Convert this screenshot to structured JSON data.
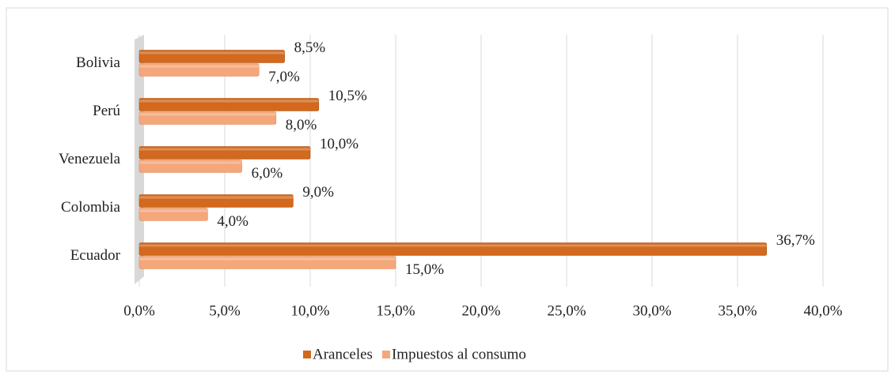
{
  "chart_data": {
    "type": "hbar",
    "categories": [
      "Bolivia",
      "Perú",
      "Venezuela",
      "Colombia",
      "Ecuador"
    ],
    "series": [
      {
        "name": "Aranceles",
        "color": "#d2691e",
        "values": [
          8.5,
          10.5,
          10.0,
          9.0,
          36.7
        ],
        "value_labels": [
          "8,5%",
          "10,5%",
          "10,0%",
          "9,0%",
          "36,7%"
        ]
      },
      {
        "name": "Impuestos al consumo",
        "color": "#f4a77a",
        "values": [
          7.0,
          8.0,
          6.0,
          4.0,
          15.0
        ],
        "value_labels": [
          "7,0%",
          "8,0%",
          "6,0%",
          "4,0%",
          "15,0%"
        ]
      }
    ],
    "xlim": [
      0,
      40
    ],
    "xticks": [
      {
        "value": 0,
        "label": "0,0%"
      },
      {
        "value": 5,
        "label": "5,0%"
      },
      {
        "value": 10,
        "label": "10,0%"
      },
      {
        "value": 15,
        "label": "15,0%"
      },
      {
        "value": 20,
        "label": "20,0%"
      },
      {
        "value": 25,
        "label": "25,0%"
      },
      {
        "value": 30,
        "label": "30,0%"
      },
      {
        "value": 35,
        "label": "35,0%"
      },
      {
        "value": 40,
        "label": "40,0%"
      }
    ],
    "grid": true,
    "legend": "bottom"
  }
}
